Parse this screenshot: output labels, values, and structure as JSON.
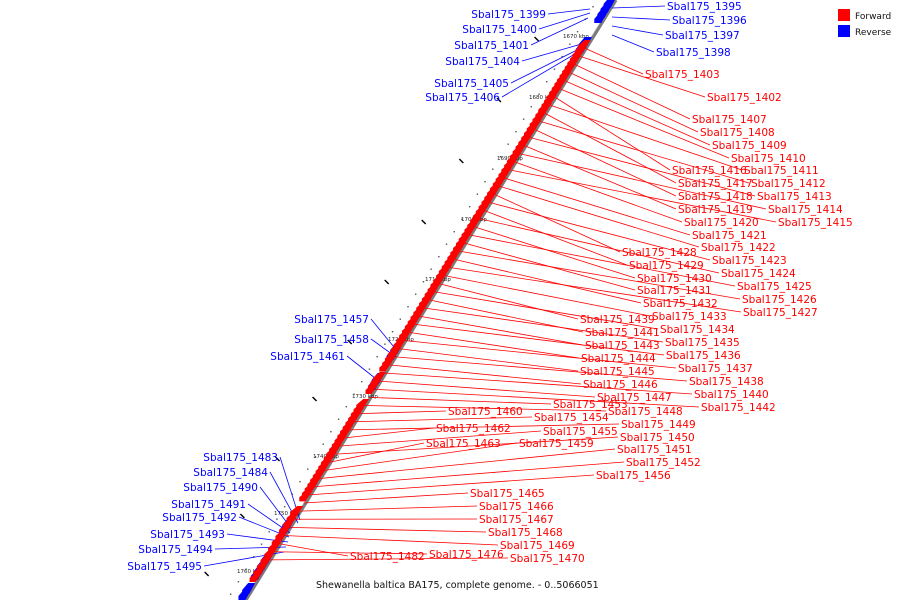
{
  "caption": "Shewanella baltica BA175, complete genome. - 0..5066051",
  "legend": {
    "items": [
      {
        "label": "Forward",
        "color": "#ff0000"
      },
      {
        "label": "Reverse",
        "color": "#0000ff"
      }
    ]
  },
  "colors": {
    "forward": "#ff0000",
    "reverse": "#0000ff",
    "backbone": "#888888"
  },
  "ticks": [
    "1670 kbp",
    "1680 kbp",
    "1690 kbp",
    "1700 kbp",
    "1710 kbp",
    "1720 kbp",
    "1730 kbp",
    "1740 kbp",
    "1750 kbp",
    "1760 kbp"
  ],
  "reverse_left": [
    "Sbal175_1399",
    "Sbal175_1400",
    "Sbal175_1401",
    "Sbal175_1404",
    "Sbal175_1405",
    "Sbal175_1406",
    "Sbal175_1457",
    "Sbal175_1458",
    "Sbal175_1461",
    "Sbal175_1483",
    "Sbal175_1484",
    "Sbal175_1490",
    "Sbal175_1491",
    "Sbal175_1492",
    "Sbal175_1493",
    "Sbal175_1494",
    "Sbal175_1495"
  ],
  "reverse_right": [
    "Sbal175_1395",
    "Sbal175_1396",
    "Sbal175_1397",
    "Sbal175_1398"
  ],
  "forward": [
    "Sbal175_1403",
    "Sbal175_1402",
    "Sbal175_1407",
    "Sbal175_1408",
    "Sbal175_1409",
    "Sbal175_1410",
    "Sbal175_1416",
    "Sbal175_1411",
    "Sbal175_1417",
    "Sbal175_1412",
    "Sbal175_1418",
    "Sbal175_1413",
    "Sbal175_1419",
    "Sbal175_1414",
    "Sbal175_1420",
    "Sbal175_1415",
    "Sbal175_1421",
    "Sbal175_1422",
    "Sbal175_1428",
    "Sbal175_1423",
    "Sbal175_1429",
    "Sbal175_1424",
    "Sbal175_1430",
    "Sbal175_1425",
    "Sbal175_1431",
    "Sbal175_1426",
    "Sbal175_1432",
    "Sbal175_1427",
    "Sbal175_1433",
    "Sbal175_1439",
    "Sbal175_1434",
    "Sbal175_1441",
    "Sbal175_1435",
    "Sbal175_1443",
    "Sbal175_1436",
    "Sbal175_1444",
    "Sbal175_1437",
    "Sbal175_1445",
    "Sbal175_1438",
    "Sbal175_1446",
    "Sbal175_1440",
    "Sbal175_1447",
    "Sbal175_1442",
    "Sbal175_1453",
    "Sbal175_1448",
    "Sbal175_1460",
    "Sbal175_1454",
    "Sbal175_1449",
    "Sbal175_1462",
    "Sbal175_1455",
    "Sbal175_1450",
    "Sbal175_1463",
    "Sbal175_1459",
    "Sbal175_1451",
    "Sbal175_1452",
    "Sbal175_1456",
    "Sbal175_1465",
    "Sbal175_1466",
    "Sbal175_1467",
    "Sbal175_1468",
    "Sbal175_1469",
    "Sbal175_1482",
    "Sbal175_1476",
    "Sbal175_1470"
  ]
}
